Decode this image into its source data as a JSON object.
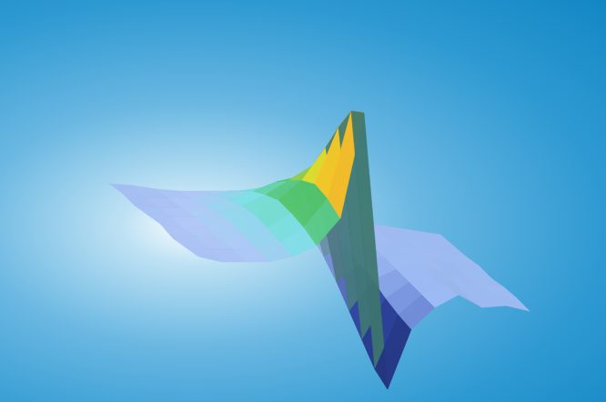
{
  "chart_data": {
    "type": "surface",
    "x": [
      -7,
      -6,
      -5,
      -4,
      -3,
      -2,
      -1,
      0,
      1,
      2,
      3,
      4,
      5,
      6,
      7
    ],
    "y": [
      0,
      1,
      2,
      3,
      4,
      5,
      6,
      7
    ],
    "z": [
      [
        0.2,
        0.1,
        0.3,
        0.5,
        1.0,
        1.8,
        3.5,
        9.5,
        -5.5,
        -2.0,
        -0.6,
        0.3,
        -0.2,
        0.1,
        0.0
      ],
      [
        0.1,
        0.2,
        0.4,
        0.6,
        1.2,
        2.2,
        4.0,
        9.0,
        -5.0,
        -1.8,
        -0.5,
        0.2,
        -0.3,
        0.2,
        0.1
      ],
      [
        0.0,
        0.3,
        0.3,
        0.8,
        1.4,
        2.4,
        4.2,
        7.5,
        -4.0,
        -1.5,
        -0.4,
        0.1,
        -0.1,
        0.0,
        0.1
      ],
      [
        0.2,
        0.1,
        0.5,
        0.9,
        1.5,
        2.5,
        3.8,
        5.8,
        -3.0,
        -1.1,
        -0.3,
        0.2,
        0.0,
        -0.1,
        0.0
      ],
      [
        0.1,
        0.2,
        0.4,
        0.8,
        1.4,
        2.2,
        3.2,
        4.2,
        -2.0,
        -0.8,
        -0.2,
        0.1,
        0.1,
        0.0,
        0.1
      ],
      [
        0.0,
        0.1,
        0.3,
        0.6,
        1.1,
        1.8,
        2.5,
        3.0,
        -1.2,
        -0.5,
        -0.1,
        0.0,
        0.0,
        0.1,
        0.0
      ],
      [
        0.1,
        0.0,
        0.2,
        0.4,
        0.8,
        1.2,
        1.6,
        1.8,
        -0.6,
        -0.3,
        0.0,
        0.1,
        -0.1,
        0.0,
        0.0
      ],
      [
        0.0,
        0.1,
        0.1,
        0.2,
        0.4,
        0.6,
        0.8,
        0.9,
        -0.2,
        -0.1,
        0.0,
        0.0,
        0.0,
        0.0,
        0.0
      ]
    ],
    "zlim": [
      -6,
      10
    ],
    "tick_labels": false
  }
}
